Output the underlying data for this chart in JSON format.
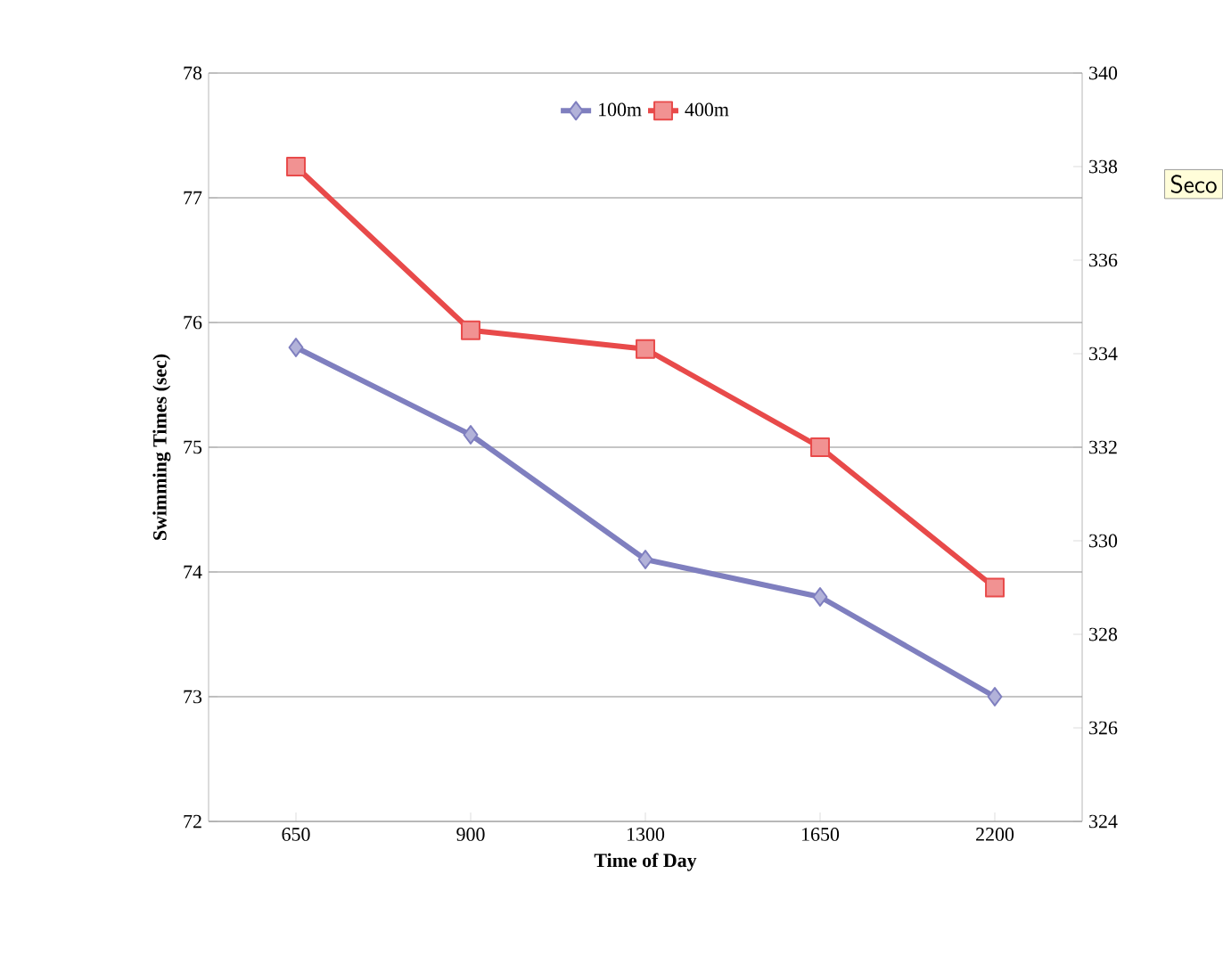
{
  "chart_data": {
    "type": "line",
    "xlabel": "Time of Day",
    "ylabel": "Swimming Times (sec)",
    "categories": [
      "650",
      "900",
      "1300",
      "1650",
      "2200"
    ],
    "series": [
      {
        "name": "100m",
        "color": "#7f7fbf",
        "values": [
          75.8,
          75.1,
          74.1,
          73.8,
          73.0
        ],
        "marker": "diamond"
      },
      {
        "name": "400m",
        "color": "#e84a4a",
        "values": [
          338,
          334.5,
          334.1,
          332,
          329
        ],
        "axis": "y2",
        "marker": "square"
      }
    ],
    "ylim": [
      72,
      78
    ],
    "yticks": [
      72,
      73,
      74,
      75,
      76,
      77,
      78
    ],
    "y2lim": [
      324,
      340
    ],
    "y2ticks": [
      324,
      326,
      328,
      330,
      332,
      334,
      336,
      338,
      340
    ],
    "grid": "y",
    "legend": "top",
    "annotations": [
      "Seco"
    ]
  }
}
